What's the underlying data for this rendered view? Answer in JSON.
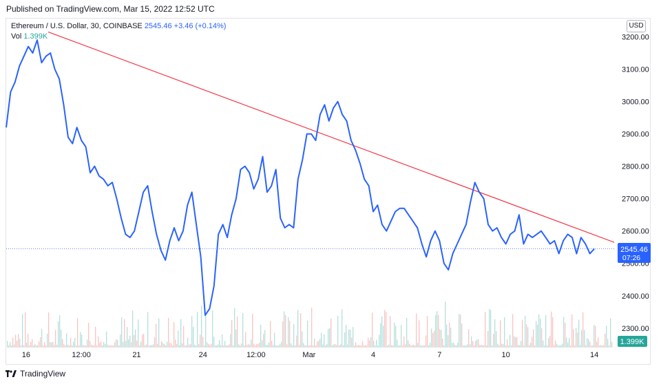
{
  "header": {
    "published": "Published on TradingView.com, Mar 15, 2022 12:52 UTC"
  },
  "legend": {
    "symbol": "Ethereum / U.S. Dollar, 30, COINBASE",
    "price": "2545.46",
    "change": "+3.46 (+0.14%)",
    "vol_label": "Vol",
    "vol_value": "1.399K"
  },
  "currency": "USD",
  "price_label": {
    "value": "2545.46",
    "countdown": "07:26"
  },
  "volume_label": "1.399K",
  "footer": {
    "brand": "TradingView"
  },
  "colors": {
    "price_line": "#2962ff",
    "trend_line": "#f23645",
    "volume_up": "#26a69a",
    "volume_down": "#ef5350",
    "axis_text": "#131722"
  },
  "chart_data": {
    "type": "line",
    "title": "",
    "xlabel": "",
    "ylabel": "",
    "x_range": [
      0,
      27.5
    ],
    "ylim": [
      2240,
      3250
    ],
    "y_ticks": [
      "3200.00",
      "3100.00",
      "3000.00",
      "2900.00",
      "2800.00",
      "2700.00",
      "2600.00",
      "2500.00",
      "2400.00",
      "2300.00"
    ],
    "y_tick_values": [
      3200,
      3100,
      3000,
      2900,
      2800,
      2700,
      2600,
      2500,
      2400,
      2300
    ],
    "x_ticks": [
      {
        "label": "16",
        "x": 0.9
      },
      {
        "label": "12:00",
        "x": 3.4
      },
      {
        "label": "21",
        "x": 5.9
      },
      {
        "label": "24",
        "x": 8.9
      },
      {
        "label": "12:00",
        "x": 11.3
      },
      {
        "label": "Mar",
        "x": 13.7
      },
      {
        "label": "4",
        "x": 16.6
      },
      {
        "label": "7",
        "x": 19.6
      },
      {
        "label": "10",
        "x": 22.6
      },
      {
        "label": "14",
        "x": 26.6
      }
    ],
    "series": [
      {
        "values": [
          [
            0.0,
            2920
          ],
          [
            0.2,
            3030
          ],
          [
            0.4,
            3060
          ],
          [
            0.6,
            3110
          ],
          [
            0.8,
            3140
          ],
          [
            1.0,
            3170
          ],
          [
            1.2,
            3150
          ],
          [
            1.4,
            3190
          ],
          [
            1.6,
            3120
          ],
          [
            1.8,
            3140
          ],
          [
            2.0,
            3150
          ],
          [
            2.2,
            3100
          ],
          [
            2.4,
            3070
          ],
          [
            2.6,
            2990
          ],
          [
            2.8,
            2890
          ],
          [
            3.0,
            2870
          ],
          [
            3.2,
            2920
          ],
          [
            3.4,
            2880
          ],
          [
            3.6,
            2860
          ],
          [
            3.8,
            2780
          ],
          [
            4.0,
            2800
          ],
          [
            4.2,
            2770
          ],
          [
            4.4,
            2760
          ],
          [
            4.6,
            2740
          ],
          [
            4.8,
            2750
          ],
          [
            5.0,
            2700
          ],
          [
            5.2,
            2640
          ],
          [
            5.4,
            2590
          ],
          [
            5.6,
            2580
          ],
          [
            5.8,
            2600
          ],
          [
            6.0,
            2660
          ],
          [
            6.2,
            2720
          ],
          [
            6.4,
            2740
          ],
          [
            6.6,
            2660
          ],
          [
            6.8,
            2590
          ],
          [
            7.0,
            2540
          ],
          [
            7.2,
            2510
          ],
          [
            7.4,
            2570
          ],
          [
            7.6,
            2610
          ],
          [
            7.8,
            2570
          ],
          [
            8.0,
            2600
          ],
          [
            8.2,
            2680
          ],
          [
            8.4,
            2720
          ],
          [
            8.6,
            2620
          ],
          [
            8.8,
            2520
          ],
          [
            9.0,
            2340
          ],
          [
            9.2,
            2360
          ],
          [
            9.4,
            2430
          ],
          [
            9.6,
            2590
          ],
          [
            9.8,
            2620
          ],
          [
            10.0,
            2580
          ],
          [
            10.2,
            2650
          ],
          [
            10.4,
            2700
          ],
          [
            10.6,
            2790
          ],
          [
            10.8,
            2800
          ],
          [
            11.0,
            2780
          ],
          [
            11.2,
            2730
          ],
          [
            11.4,
            2760
          ],
          [
            11.6,
            2830
          ],
          [
            11.8,
            2720
          ],
          [
            12.0,
            2740
          ],
          [
            12.2,
            2790
          ],
          [
            12.4,
            2640
          ],
          [
            12.6,
            2610
          ],
          [
            12.8,
            2620
          ],
          [
            13.0,
            2610
          ],
          [
            13.2,
            2760
          ],
          [
            13.4,
            2820
          ],
          [
            13.6,
            2900
          ],
          [
            13.8,
            2900
          ],
          [
            14.0,
            2880
          ],
          [
            14.2,
            2960
          ],
          [
            14.4,
            2990
          ],
          [
            14.6,
            2940
          ],
          [
            14.8,
            2980
          ],
          [
            15.0,
            3000
          ],
          [
            15.2,
            2960
          ],
          [
            15.4,
            2940
          ],
          [
            15.6,
            2880
          ],
          [
            15.8,
            2850
          ],
          [
            16.0,
            2810
          ],
          [
            16.2,
            2760
          ],
          [
            16.4,
            2740
          ],
          [
            16.6,
            2660
          ],
          [
            16.8,
            2680
          ],
          [
            17.0,
            2620
          ],
          [
            17.2,
            2600
          ],
          [
            17.4,
            2630
          ],
          [
            17.6,
            2660
          ],
          [
            17.8,
            2670
          ],
          [
            18.0,
            2670
          ],
          [
            18.2,
            2650
          ],
          [
            18.4,
            2630
          ],
          [
            18.6,
            2610
          ],
          [
            18.8,
            2560
          ],
          [
            19.0,
            2520
          ],
          [
            19.2,
            2570
          ],
          [
            19.4,
            2600
          ],
          [
            19.6,
            2570
          ],
          [
            19.8,
            2500
          ],
          [
            20.0,
            2480
          ],
          [
            20.2,
            2530
          ],
          [
            20.4,
            2560
          ],
          [
            20.6,
            2590
          ],
          [
            20.8,
            2620
          ],
          [
            21.0,
            2690
          ],
          [
            21.2,
            2750
          ],
          [
            21.4,
            2720
          ],
          [
            21.6,
            2700
          ],
          [
            21.8,
            2620
          ],
          [
            22.0,
            2600
          ],
          [
            22.2,
            2610
          ],
          [
            22.4,
            2580
          ],
          [
            22.6,
            2560
          ],
          [
            22.8,
            2590
          ],
          [
            23.0,
            2600
          ],
          [
            23.2,
            2650
          ],
          [
            23.4,
            2560
          ],
          [
            23.6,
            2590
          ],
          [
            23.8,
            2580
          ],
          [
            24.0,
            2590
          ],
          [
            24.2,
            2600
          ],
          [
            24.4,
            2580
          ],
          [
            24.6,
            2560
          ],
          [
            24.8,
            2570
          ],
          [
            25.0,
            2530
          ],
          [
            25.2,
            2570
          ],
          [
            25.4,
            2590
          ],
          [
            25.6,
            2580
          ],
          [
            25.8,
            2530
          ],
          [
            26.0,
            2580
          ],
          [
            26.2,
            2560
          ],
          [
            26.4,
            2530
          ],
          [
            26.6,
            2545
          ]
        ]
      }
    ],
    "trend_line": [
      [
        1.9,
        3215
      ],
      [
        27.5,
        2565
      ]
    ],
    "last_price": 2545.46
  }
}
